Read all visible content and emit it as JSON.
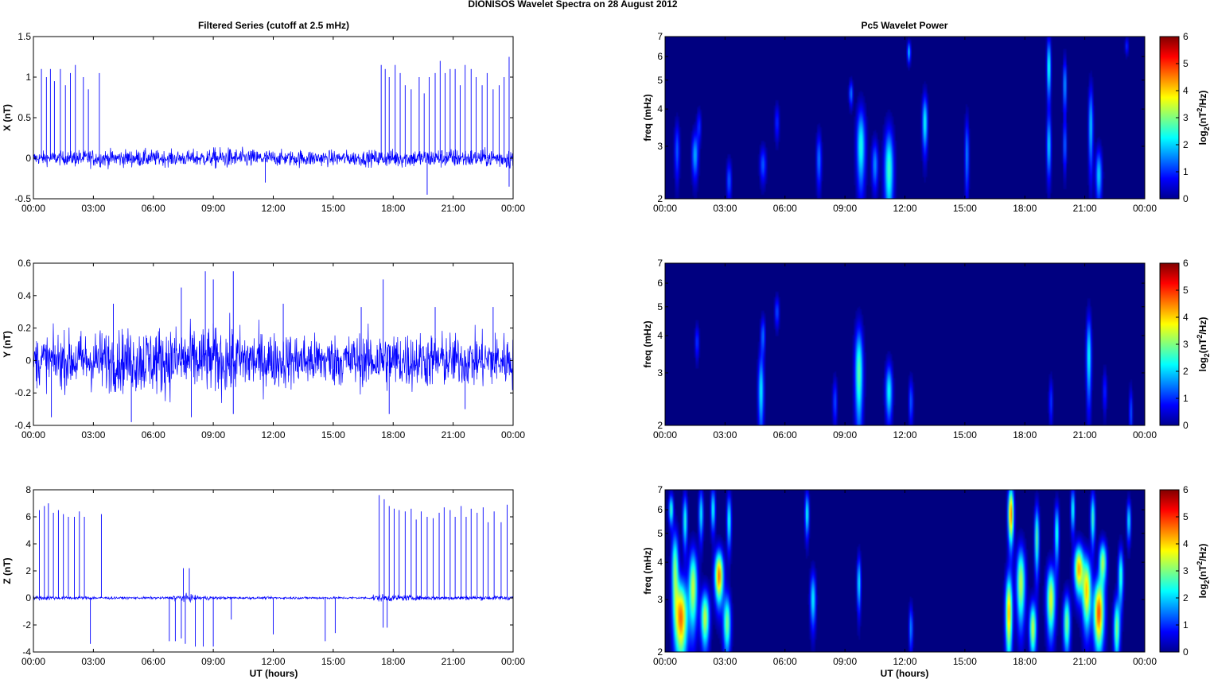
{
  "suptitle": "DIONISOS Wavelet Spectra on 28 August    2012",
  "left_title": "Filtered Series (cutoff at 2.5 mHz)",
  "right_title": "Pc5 Wavelet Power",
  "xlabel": "UT (hours)",
  "time_ticks": [
    "00:00",
    "03:00",
    "06:00",
    "09:00",
    "12:00",
    "15:00",
    "18:00",
    "21:00",
    "00:00"
  ],
  "colors": {
    "series": "#0000ff",
    "background_low": "#00008f"
  },
  "chart_data": [
    {
      "type": "line",
      "id": "x",
      "ylabel": "X (nT)",
      "ylim": [
        -0.5,
        1.5
      ],
      "yticks": [
        -0.5,
        0,
        0.5,
        1,
        1.5
      ],
      "ytick_labels": [
        "-0.5",
        "0",
        "0.5",
        "1",
        "1.5"
      ],
      "xlim": [
        0,
        24
      ],
      "noise_amp": [
        0.08,
        0.08,
        0.1,
        0.1,
        0.1,
        0.1,
        0.09,
        0.09,
        0.1,
        0.12,
        0.11,
        0.1,
        0.09,
        0.1,
        0.09,
        0.09,
        0.09,
        0.1,
        0.11,
        0.11,
        0.11,
        0.11,
        0.1,
        0.12,
        0.15
      ],
      "spikes": [
        [
          0.4,
          1.1
        ],
        [
          0.65,
          1.0
        ],
        [
          0.85,
          1.1
        ],
        [
          1.05,
          0.95
        ],
        [
          1.35,
          1.1
        ],
        [
          1.6,
          0.9
        ],
        [
          1.85,
          1.05
        ],
        [
          2.1,
          1.15
        ],
        [
          2.5,
          1.0
        ],
        [
          2.75,
          0.85
        ],
        [
          3.3,
          1.05
        ],
        [
          17.4,
          1.15
        ],
        [
          17.6,
          1.1
        ],
        [
          17.8,
          1.0
        ],
        [
          18.1,
          1.15
        ],
        [
          18.35,
          1.05
        ],
        [
          18.6,
          0.9
        ],
        [
          18.9,
          0.85
        ],
        [
          19.3,
          1.0
        ],
        [
          19.55,
          0.8
        ],
        [
          19.8,
          1.0
        ],
        [
          20.1,
          1.05
        ],
        [
          20.35,
          1.2
        ],
        [
          20.6,
          1.05
        ],
        [
          20.85,
          1.1
        ],
        [
          21.1,
          1.1
        ],
        [
          21.35,
          0.9
        ],
        [
          21.6,
          1.15
        ],
        [
          21.9,
          1.1
        ],
        [
          22.15,
          1.0
        ],
        [
          22.45,
          0.9
        ],
        [
          22.7,
          1.05
        ],
        [
          23.0,
          0.85
        ],
        [
          23.3,
          0.9
        ],
        [
          23.55,
          1.0
        ],
        [
          23.8,
          1.25
        ]
      ],
      "neg_spikes": [
        [
          19.7,
          -0.45
        ],
        [
          11.6,
          -0.3
        ],
        [
          23.8,
          -0.35
        ]
      ]
    },
    {
      "type": "line",
      "id": "y",
      "ylabel": "Y (nT)",
      "ylim": [
        -0.4,
        0.6
      ],
      "yticks": [
        -0.4,
        -0.2,
        0,
        0.2,
        0.4,
        0.6
      ],
      "ytick_labels": [
        "-0.4",
        "-0.2",
        "0",
        "0.2",
        "0.4",
        "0.6"
      ],
      "xlim": [
        0,
        24
      ],
      "noise_amp": [
        0.15,
        0.16,
        0.17,
        0.18,
        0.18,
        0.2,
        0.2,
        0.2,
        0.19,
        0.2,
        0.19,
        0.17,
        0.16,
        0.16,
        0.15,
        0.15,
        0.16,
        0.17,
        0.17,
        0.16,
        0.16,
        0.15,
        0.16,
        0.16,
        0.16
      ],
      "spikes": [
        [
          7.4,
          0.45
        ],
        [
          8.6,
          0.55
        ],
        [
          9.0,
          0.5
        ],
        [
          10.0,
          0.55
        ],
        [
          17.5,
          0.5
        ],
        [
          4.0,
          0.35
        ],
        [
          12.5,
          0.35
        ],
        [
          16.4,
          0.33
        ],
        [
          20.1,
          0.33
        ],
        [
          23.0,
          0.33
        ]
      ],
      "neg_spikes": [
        [
          0.9,
          -0.35
        ],
        [
          4.9,
          -0.38
        ],
        [
          7.9,
          -0.35
        ],
        [
          10.0,
          -0.33
        ],
        [
          17.8,
          -0.33
        ],
        [
          21.6,
          -0.3
        ]
      ]
    },
    {
      "type": "line",
      "id": "z",
      "ylabel": "Z (nT)",
      "ylim": [
        -4,
        8
      ],
      "yticks": [
        -4,
        -2,
        0,
        2,
        4,
        6,
        8
      ],
      "ytick_labels": [
        "-4",
        "-2",
        "0",
        "2",
        "4",
        "6",
        "8"
      ],
      "xlim": [
        0,
        24
      ],
      "noise_amp": [
        0.15,
        0.12,
        0.12,
        0.1,
        0.08,
        0.08,
        0.08,
        0.25,
        0.15,
        0.1,
        0.08,
        0.08,
        0.08,
        0.08,
        0.08,
        0.08,
        0.08,
        0.25,
        0.2,
        0.15,
        0.15,
        0.15,
        0.15,
        0.15,
        0.15
      ],
      "spikes": [
        [
          0.3,
          6.5
        ],
        [
          0.55,
          6.8
        ],
        [
          0.75,
          7.0
        ],
        [
          1.0,
          6.3
        ],
        [
          1.25,
          6.5
        ],
        [
          1.5,
          6.2
        ],
        [
          1.75,
          6.0
        ],
        [
          2.05,
          6.0
        ],
        [
          2.3,
          6.4
        ],
        [
          2.55,
          6.0
        ],
        [
          3.4,
          6.2
        ],
        [
          7.5,
          2.2
        ],
        [
          7.8,
          2.2
        ],
        [
          17.3,
          7.6
        ],
        [
          17.55,
          7.3
        ],
        [
          17.8,
          6.8
        ],
        [
          18.05,
          6.6
        ],
        [
          18.3,
          6.5
        ],
        [
          18.6,
          6.4
        ],
        [
          18.9,
          6.6
        ],
        [
          19.15,
          5.8
        ],
        [
          19.4,
          6.4
        ],
        [
          19.7,
          6.0
        ],
        [
          20.0,
          5.9
        ],
        [
          20.3,
          6.3
        ],
        [
          20.55,
          6.7
        ],
        [
          20.85,
          6.5
        ],
        [
          21.1,
          6.0
        ],
        [
          21.4,
          6.8
        ],
        [
          21.65,
          6.0
        ],
        [
          21.9,
          6.6
        ],
        [
          22.2,
          6.3
        ],
        [
          22.5,
          6.7
        ],
        [
          22.75,
          5.6
        ],
        [
          23.05,
          6.4
        ],
        [
          23.4,
          5.6
        ],
        [
          23.7,
          6.9
        ]
      ],
      "neg_spikes": [
        [
          2.85,
          -3.4
        ],
        [
          6.8,
          -3.2
        ],
        [
          7.1,
          -3.2
        ],
        [
          7.4,
          -3.0
        ],
        [
          7.6,
          -3.4
        ],
        [
          8.1,
          -3.6
        ],
        [
          8.5,
          -3.6
        ],
        [
          9.0,
          -3.6
        ],
        [
          9.9,
          -1.6
        ],
        [
          12.0,
          -2.7
        ],
        [
          14.6,
          -3.2
        ],
        [
          15.1,
          -2.6
        ],
        [
          17.5,
          -2.2
        ],
        [
          17.7,
          -2.2
        ]
      ]
    },
    {
      "type": "heatmap",
      "id": "x_power",
      "ylabel": "freq (mHz)",
      "yscale": "log",
      "ylim": [
        2,
        7
      ],
      "yticks": [
        2,
        3,
        4,
        5,
        6,
        7
      ],
      "ytick_labels": [
        "2",
        "3",
        "4",
        "5",
        "6",
        "7"
      ],
      "xlim": [
        0,
        24
      ],
      "colorbar": {
        "label": "log2(nT2/Hz)",
        "clim": [
          0,
          6
        ],
        "ticks": [
          0,
          1,
          2,
          3,
          4,
          5,
          6
        ]
      },
      "blobs": [
        [
          0.6,
          2.9,
          0.09,
          0.45,
          1.3
        ],
        [
          1.5,
          2.8,
          0.11,
          0.35,
          1.8
        ],
        [
          1.7,
          3.5,
          0.08,
          0.3,
          1.0
        ],
        [
          3.2,
          2.3,
          0.09,
          0.25,
          1.3
        ],
        [
          4.9,
          2.6,
          0.11,
          0.25,
          1.3
        ],
        [
          5.6,
          3.6,
          0.08,
          0.35,
          1.0
        ],
        [
          7.7,
          2.7,
          0.09,
          0.4,
          1.5
        ],
        [
          9.3,
          4.5,
          0.07,
          0.3,
          1.5
        ],
        [
          9.8,
          3.0,
          0.15,
          0.65,
          2.4
        ],
        [
          10.5,
          2.6,
          0.11,
          0.35,
          1.6
        ],
        [
          11.2,
          2.5,
          0.16,
          0.6,
          2.6
        ],
        [
          12.2,
          6.2,
          0.06,
          0.35,
          2.0
        ],
        [
          13.0,
          3.6,
          0.09,
          0.55,
          2.3
        ],
        [
          15.1,
          2.8,
          0.07,
          0.6,
          1.6
        ],
        [
          19.2,
          5.5,
          0.07,
          0.9,
          2.5
        ],
        [
          19.2,
          3.0,
          0.08,
          0.5,
          2.0
        ],
        [
          20.0,
          4.8,
          0.06,
          0.7,
          1.8
        ],
        [
          20.0,
          3.0,
          0.06,
          0.4,
          1.4
        ],
        [
          21.3,
          3.5,
          0.08,
          0.8,
          2.0
        ],
        [
          21.7,
          2.4,
          0.11,
          0.35,
          2.0
        ],
        [
          23.1,
          6.5,
          0.06,
          0.3,
          1.0
        ]
      ]
    },
    {
      "type": "heatmap",
      "id": "y_power",
      "ylabel": "freq (mHz)",
      "yscale": "log",
      "ylim": [
        2,
        7
      ],
      "yticks": [
        2,
        3,
        4,
        5,
        6,
        7
      ],
      "ytick_labels": [
        "2",
        "3",
        "4",
        "5",
        "6",
        "7"
      ],
      "xlim": [
        0,
        24
      ],
      "colorbar": {
        "label": "log2(nT2/Hz)",
        "clim": [
          0,
          6
        ],
        "ticks": [
          0,
          1,
          2,
          3,
          4,
          5,
          6
        ]
      },
      "blobs": [
        [
          1.6,
          3.8,
          0.07,
          0.35,
          1.1
        ],
        [
          4.8,
          2.6,
          0.1,
          0.55,
          2.2
        ],
        [
          4.9,
          4.0,
          0.08,
          0.4,
          1.4
        ],
        [
          5.6,
          4.8,
          0.08,
          0.4,
          1.2
        ],
        [
          8.5,
          2.4,
          0.08,
          0.3,
          1.2
        ],
        [
          9.7,
          3.0,
          0.14,
          0.8,
          2.8
        ],
        [
          11.2,
          2.6,
          0.12,
          0.4,
          2.3
        ],
        [
          12.3,
          2.4,
          0.08,
          0.3,
          1.3
        ],
        [
          19.3,
          2.4,
          0.07,
          0.3,
          1.1
        ],
        [
          21.2,
          3.4,
          0.09,
          0.8,
          2.3
        ],
        [
          22.0,
          2.6,
          0.07,
          0.3,
          1.0
        ],
        [
          23.3,
          2.2,
          0.06,
          0.3,
          1.3
        ]
      ]
    },
    {
      "type": "heatmap",
      "id": "z_power",
      "ylabel": "freq (mHz)",
      "yscale": "log",
      "ylim": [
        2,
        7
      ],
      "yticks": [
        2,
        3,
        4,
        5,
        6,
        7
      ],
      "ytick_labels": [
        "2",
        "3",
        "4",
        "5",
        "6",
        "7"
      ],
      "xlim": [
        0,
        24
      ],
      "colorbar": {
        "label": "log2(nT2/Hz)",
        "clim": [
          0,
          6
        ],
        "ticks": [
          0,
          1,
          2,
          3,
          4,
          5,
          6
        ]
      },
      "blobs": [
        [
          0.8,
          2.6,
          0.22,
          0.55,
          4.6
        ],
        [
          0.5,
          3.8,
          0.12,
          0.8,
          3.0
        ],
        [
          1.4,
          3.3,
          0.15,
          0.7,
          3.4
        ],
        [
          2.0,
          2.6,
          0.15,
          0.4,
          3.4
        ],
        [
          2.7,
          3.6,
          0.15,
          0.5,
          4.6
        ],
        [
          3.1,
          2.5,
          0.13,
          0.4,
          3.0
        ],
        [
          0.3,
          6.0,
          0.08,
          0.5,
          2.6
        ],
        [
          1.0,
          5.5,
          0.08,
          0.8,
          2.4
        ],
        [
          1.8,
          5.8,
          0.08,
          0.8,
          2.2
        ],
        [
          2.4,
          6.0,
          0.08,
          0.7,
          2.3
        ],
        [
          3.2,
          5.5,
          0.08,
          0.8,
          2.4
        ],
        [
          7.1,
          5.8,
          0.07,
          0.7,
          2.4
        ],
        [
          7.4,
          3.0,
          0.1,
          0.45,
          2.2
        ],
        [
          9.7,
          3.4,
          0.07,
          0.5,
          2.2
        ],
        [
          12.3,
          2.4,
          0.07,
          0.3,
          1.6
        ],
        [
          17.2,
          2.7,
          0.12,
          0.6,
          4.2
        ],
        [
          17.3,
          5.8,
          0.1,
          0.9,
          4.5
        ],
        [
          17.8,
          3.4,
          0.15,
          0.7,
          3.4
        ],
        [
          18.4,
          2.4,
          0.12,
          0.35,
          3.4
        ],
        [
          18.6,
          4.8,
          0.08,
          0.9,
          2.8
        ],
        [
          19.3,
          3.0,
          0.15,
          0.55,
          3.6
        ],
        [
          19.6,
          5.0,
          0.08,
          0.8,
          2.5
        ],
        [
          20.1,
          2.5,
          0.12,
          0.4,
          3.0
        ],
        [
          20.7,
          3.8,
          0.16,
          0.5,
          4.2
        ],
        [
          21.1,
          3.2,
          0.15,
          0.6,
          4.0
        ],
        [
          21.7,
          2.7,
          0.18,
          0.5,
          4.8
        ],
        [
          21.9,
          4.0,
          0.13,
          0.45,
          3.2
        ],
        [
          22.6,
          2.4,
          0.11,
          0.4,
          3.0
        ],
        [
          22.8,
          3.6,
          0.09,
          0.55,
          2.6
        ],
        [
          21.4,
          5.6,
          0.08,
          0.8,
          2.6
        ],
        [
          20.4,
          6.0,
          0.07,
          0.7,
          2.4
        ],
        [
          23.2,
          5.5,
          0.07,
          0.6,
          2.2
        ]
      ]
    }
  ]
}
